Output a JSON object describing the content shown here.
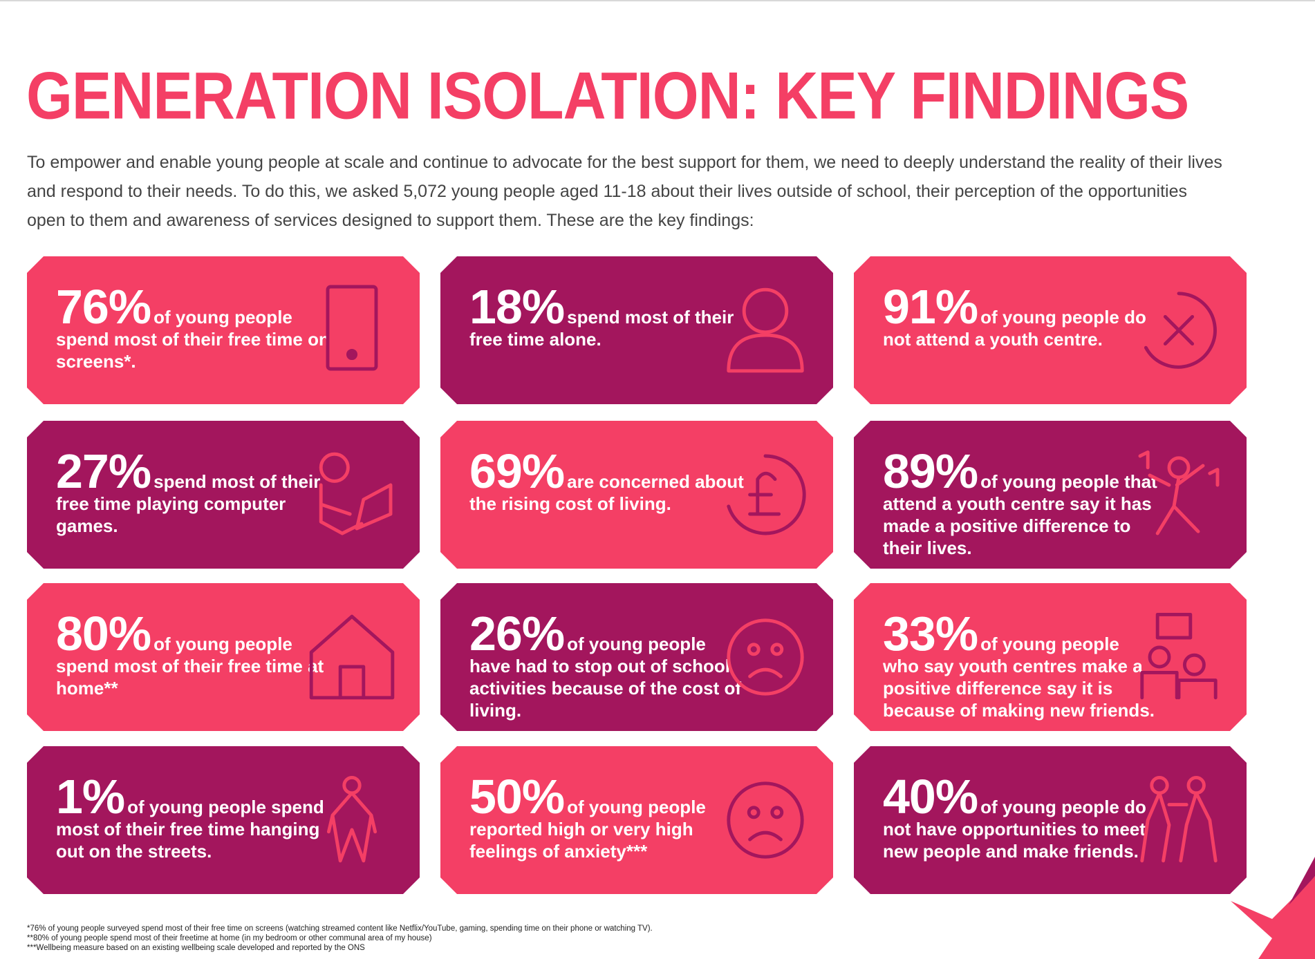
{
  "header": {
    "title": "GENERATION ISOLATION: KEY FINDINGS",
    "intro": "To empower and enable young people at scale and continue to advocate for the best support for them, we need to deeply understand the reality of their lives and respond to their needs. To do this, we asked 5,072 young people aged 11-18 about their lives outside of school, their perception of the opportunities open to them and awareness of services designed to support them. These are the key findings:"
  },
  "cards": [
    {
      "stat": "76%",
      "text": "of young people spend most of their free time on screens*.",
      "color": "#f43f65"
    },
    {
      "stat": "18%",
      "text": "spend most of their free time alone.",
      "color": "#a3165d"
    },
    {
      "stat": "91%",
      "text": "of young people do not attend a youth centre.",
      "color": "#f43f65"
    },
    {
      "stat": "27%",
      "text": "spend most of their free time playing computer games.",
      "color": "#a3165d"
    },
    {
      "stat": "69%",
      "text": "are concerned about the rising cost of living.",
      "color": "#f43f65"
    },
    {
      "stat": "89%",
      "text": "of young people that attend a youth centre say it has made a positive difference to their lives.",
      "color": "#a3165d"
    },
    {
      "stat": "80%",
      "text": "of young people spend most of their free time at home**",
      "color": "#f43f65"
    },
    {
      "stat": "26%",
      "text": "of young people have had to stop out of school activities because of the cost of living.",
      "color": "#a3165d"
    },
    {
      "stat": "33%",
      "text": "of young people who say youth centres make a positive difference say it is because of making new friends.",
      "color": "#f43f65"
    },
    {
      "stat": "1%",
      "text": "of young people spend most of their free time hanging out on the streets.",
      "color": "#a3165d"
    },
    {
      "stat": "50%",
      "text": "of young people reported high or very high feelings of anxiety***",
      "color": "#f43f65"
    },
    {
      "stat": "40%",
      "text": "of young people do not have opportunities to meet new people and make friends.",
      "color": "#a3165d"
    }
  ],
  "footnotes": [
    "*76% of young people surveyed spend most of their free time on screens (watching streamed content like Netflix/YouTube, gaming, spending time on their phone or watching TV).",
    "**80% of young people spend most of their freetime at home (in my bedroom or other communal area of my house)",
    "***Wellbeing measure based on an existing wellbeing scale developed and reported by the ONS"
  ]
}
